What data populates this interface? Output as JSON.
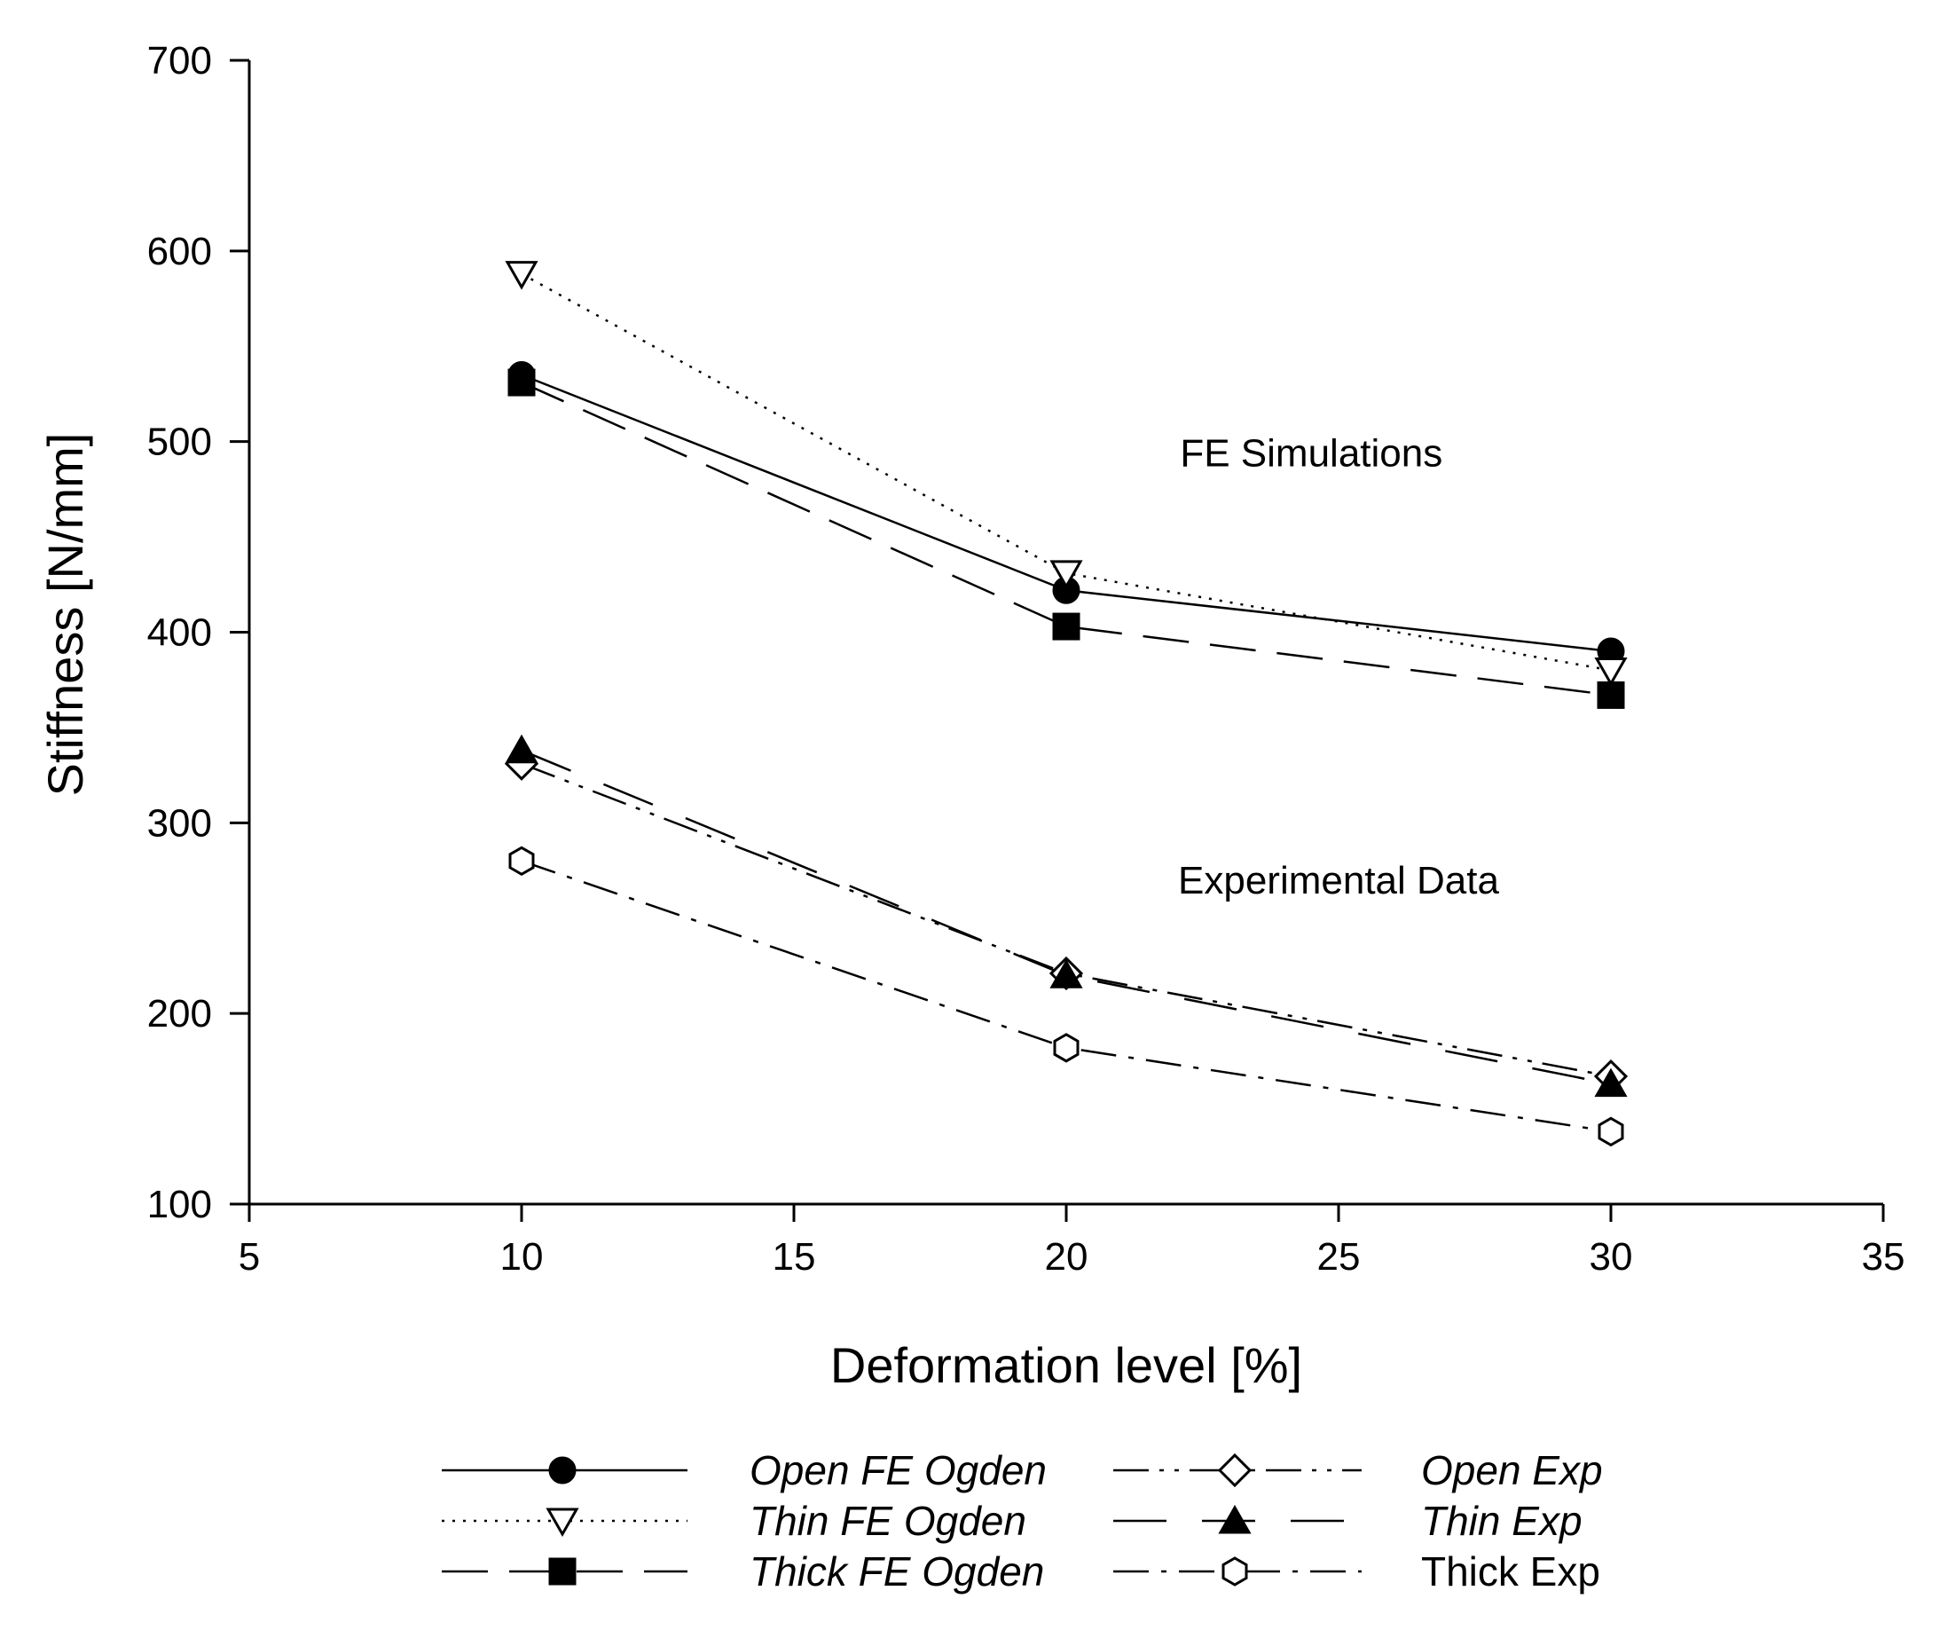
{
  "chart_data": {
    "type": "line",
    "title": "",
    "xlabel": "Deformation level [%]",
    "ylabel": "Stiffness [N/mm]",
    "xlim": [
      5,
      35
    ],
    "ylim": [
      100,
      700
    ],
    "xticks": [
      5,
      10,
      15,
      20,
      25,
      30,
      35
    ],
    "yticks": [
      100,
      200,
      300,
      400,
      500,
      600,
      700
    ],
    "grid": false,
    "legend_position": "bottom",
    "x": [
      10,
      20,
      30
    ],
    "series": [
      {
        "name": "Open FE Ogden",
        "values": [
          535,
          422,
          390
        ],
        "marker": "circle",
        "fill": "black",
        "dash": "solid",
        "italic": true
      },
      {
        "name": "Thin FE Ogden",
        "values": [
          588,
          431,
          380
        ],
        "marker": "triangle-down",
        "fill": "white",
        "dash": "dotted",
        "italic": true
      },
      {
        "name": "Thick FE Ogden",
        "values": [
          531,
          403,
          367
        ],
        "marker": "square",
        "fill": "black",
        "dash": "long-dash",
        "italic": true
      },
      {
        "name": "Open Exp",
        "values": [
          331,
          221,
          167
        ],
        "marker": "diamond",
        "fill": "white",
        "dash": "dash-dot-dot",
        "italic": true
      },
      {
        "name": "Thin Exp",
        "values": [
          338,
          220,
          163
        ],
        "marker": "triangle-up",
        "fill": "black",
        "dash": "long-dash-wide",
        "italic": true
      },
      {
        "name": "Thick Exp",
        "values": [
          280,
          182,
          138
        ],
        "marker": "hexagon",
        "fill": "white",
        "dash": "dash-dot",
        "italic": false
      }
    ],
    "annotations": [
      {
        "text": "FE Simulations",
        "x": 24.5,
        "y": 487
      },
      {
        "text": "Experimental Data",
        "x": 25.0,
        "y": 263
      }
    ]
  }
}
